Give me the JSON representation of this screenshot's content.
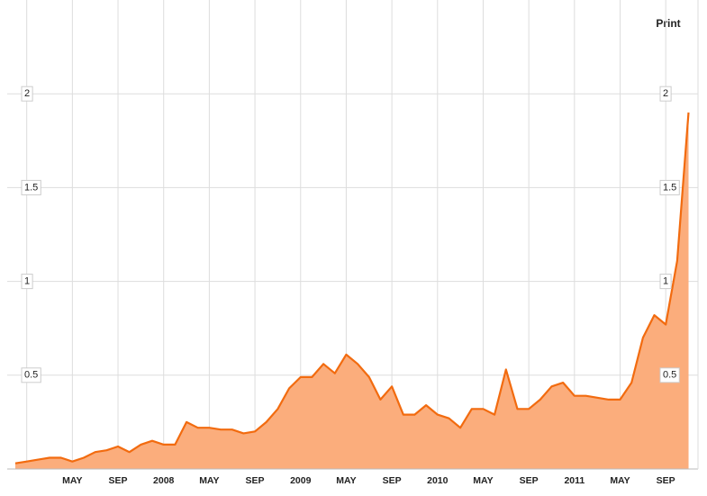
{
  "print_link": "Print",
  "chart_data": {
    "type": "area",
    "categories": [
      null,
      null,
      null,
      null,
      null,
      "MAY",
      null,
      null,
      null,
      "SEP",
      null,
      null,
      null,
      "2008",
      null,
      null,
      null,
      "MAY",
      null,
      null,
      null,
      "SEP",
      null,
      null,
      null,
      "2009",
      null,
      null,
      null,
      "MAY",
      null,
      null,
      null,
      "SEP",
      null,
      null,
      null,
      "2010",
      null,
      null,
      null,
      "MAY",
      null,
      null,
      null,
      "SEP",
      null,
      null,
      null,
      "2011",
      null,
      null,
      null,
      "MAY",
      null,
      null,
      null,
      "SEP",
      null,
      null
    ],
    "values": [
      0.03,
      0.04,
      0.05,
      0.06,
      0.06,
      0.04,
      0.06,
      0.09,
      0.1,
      0.12,
      0.09,
      0.13,
      0.15,
      0.13,
      0.13,
      0.25,
      0.22,
      0.22,
      0.21,
      0.21,
      0.19,
      0.2,
      0.25,
      0.32,
      0.43,
      0.49,
      0.49,
      0.56,
      0.51,
      0.61,
      0.56,
      0.49,
      0.37,
      0.44,
      0.29,
      0.29,
      0.34,
      0.29,
      0.27,
      0.22,
      0.32,
      0.32,
      0.29,
      0.53,
      0.32,
      0.32,
      0.37,
      0.44,
      0.46,
      0.39,
      0.39,
      0.38,
      0.37,
      0.37,
      0.46,
      0.7,
      0.82,
      0.77,
      1.11,
      1.9
    ],
    "color": "#f26b0f",
    "area_color": "#fbad7c",
    "ylim": [
      0,
      2.5
    ],
    "yticks": [
      0.5,
      1,
      1.5,
      2
    ],
    "grid": true
  }
}
